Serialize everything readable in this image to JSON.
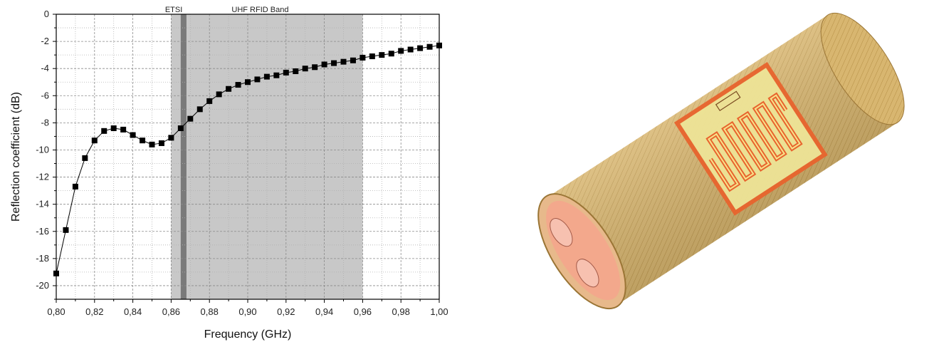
{
  "chart_data": {
    "type": "scatter",
    "xlabel": "Frequency (GHz)",
    "ylabel": "Reflection coefficient (dB)",
    "xlim": [
      0.8,
      1.0
    ],
    "ylim": [
      -21,
      0
    ],
    "x_ticks": [
      "0,80",
      "0,82",
      "0,84",
      "0,86",
      "0,88",
      "0,90",
      "0,92",
      "0,94",
      "0,96",
      "0,98",
      "1,00"
    ],
    "y_ticks": [
      "0",
      "-2",
      "-4",
      "-6",
      "-8",
      "-10",
      "-12",
      "-14",
      "-16",
      "-18",
      "-20"
    ],
    "grid": true,
    "bands": [
      {
        "label": "UHF RFID Band",
        "start": 0.86,
        "end": 0.96,
        "color": "#c8c8c8"
      },
      {
        "label": "ETSI",
        "start": 0.865,
        "end": 0.868,
        "color": "#7a7a7a"
      }
    ],
    "series": [
      {
        "marker": "square",
        "color": "#000000",
        "x": [
          0.8,
          0.805,
          0.81,
          0.815,
          0.82,
          0.825,
          0.83,
          0.835,
          0.84,
          0.845,
          0.85,
          0.855,
          0.86,
          0.865,
          0.87,
          0.875,
          0.88,
          0.885,
          0.89,
          0.895,
          0.9,
          0.905,
          0.91,
          0.915,
          0.92,
          0.925,
          0.93,
          0.935,
          0.94,
          0.945,
          0.95,
          0.955,
          0.96,
          0.965,
          0.97,
          0.975,
          0.98,
          0.985,
          0.99,
          0.995,
          1.0
        ],
        "y": [
          -19.1,
          -15.9,
          -12.7,
          -10.6,
          -9.3,
          -8.6,
          -8.4,
          -8.5,
          -8.9,
          -9.3,
          -9.6,
          -9.5,
          -9.1,
          -8.4,
          -7.7,
          -7.0,
          -6.4,
          -5.9,
          -5.5,
          -5.2,
          -5.0,
          -4.8,
          -4.6,
          -4.5,
          -4.3,
          -4.2,
          -4.0,
          -3.9,
          -3.7,
          -3.6,
          -3.5,
          -3.4,
          -3.2,
          -3.1,
          -3.0,
          -2.9,
          -2.7,
          -2.6,
          -2.5,
          -2.4,
          -2.3
        ]
      }
    ]
  },
  "model": {
    "tube_color": "#d6b36a",
    "inner_color": "#f0a78e",
    "antenna_color": "#e8642e",
    "substrate_color": "#efe59a"
  }
}
